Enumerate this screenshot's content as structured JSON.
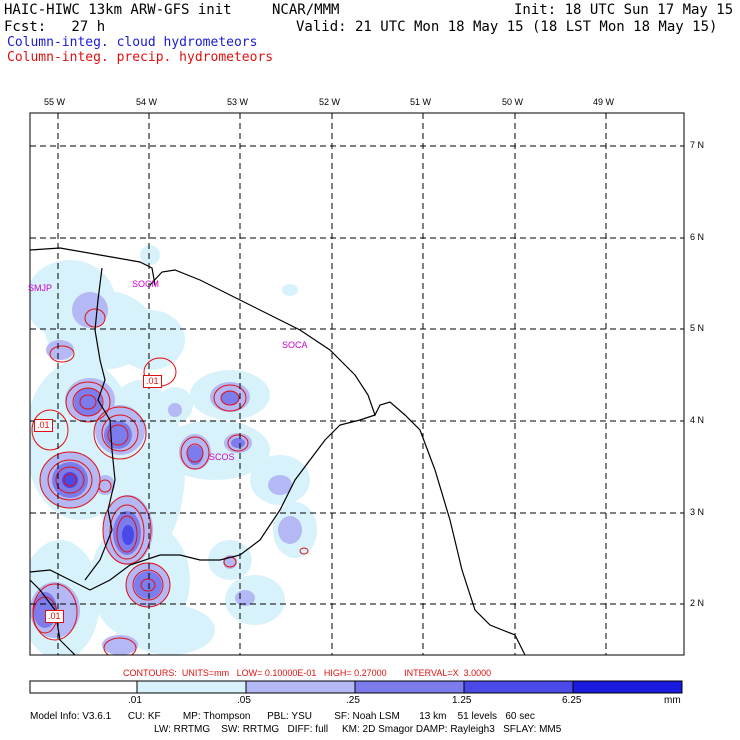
{
  "header": {
    "model_title": "HAIC-HIWC 13km ARW-GFS init",
    "org": "NCAR/MMM",
    "init": "Init: 18 UTC Sun 17 May 15",
    "fcst": "Fcst:   27 h",
    "valid": "Valid: 21 UTC Mon 18 May 15 (18 LST Mon 18 May 15)",
    "field_cloud": "Column-integ. cloud hydrometeors",
    "field_precip": "Column-integ. precip. hydrometeors"
  },
  "colors": {
    "cloud_text": "#1a1ad6",
    "precip_text": "#e01010",
    "station": "#cc00cc",
    "shade_1": "#d8f2fb",
    "shade_2": "#b4b8f5",
    "shade_3": "#7c7ced",
    "shade_4": "#4a4ae8",
    "shade_5": "#1a1ae0"
  },
  "map": {
    "lon_labels": [
      "55 W",
      "54 W",
      "53 W",
      "52 W",
      "51 W",
      "50 W",
      "49 W"
    ],
    "lat_labels": [
      "7 N",
      "6 N",
      "5 N",
      "4 N",
      "3 N",
      "2 N"
    ],
    "stations": [
      "SMJP",
      "SOCM",
      "SOCA",
      "SCOS"
    ],
    "contour_values": [
      ".01",
      ".01",
      ".01"
    ]
  },
  "contour_info": "CONTOURS:  UNITS=mm   LOW= 0.10000E-01   HIGH= 0.27000       INTERVAL=X  3.0000",
  "colorbar": {
    "ticks": [
      ".01",
      ".05",
      ".25",
      "1.25",
      "6.25"
    ],
    "units": "mm"
  },
  "model_info": {
    "line1": "Model Info: V3.6.1      CU: KF        MP: Thompson      PBL: YSU        SF: Noah LSM       13 km    51 levels   60 sec",
    "line2": "LW: RRTMG    SW: RRTMG   DIFF: full     KM: 2D Smagor DAMP: Rayleigh3   SFLAY: MM5"
  }
}
